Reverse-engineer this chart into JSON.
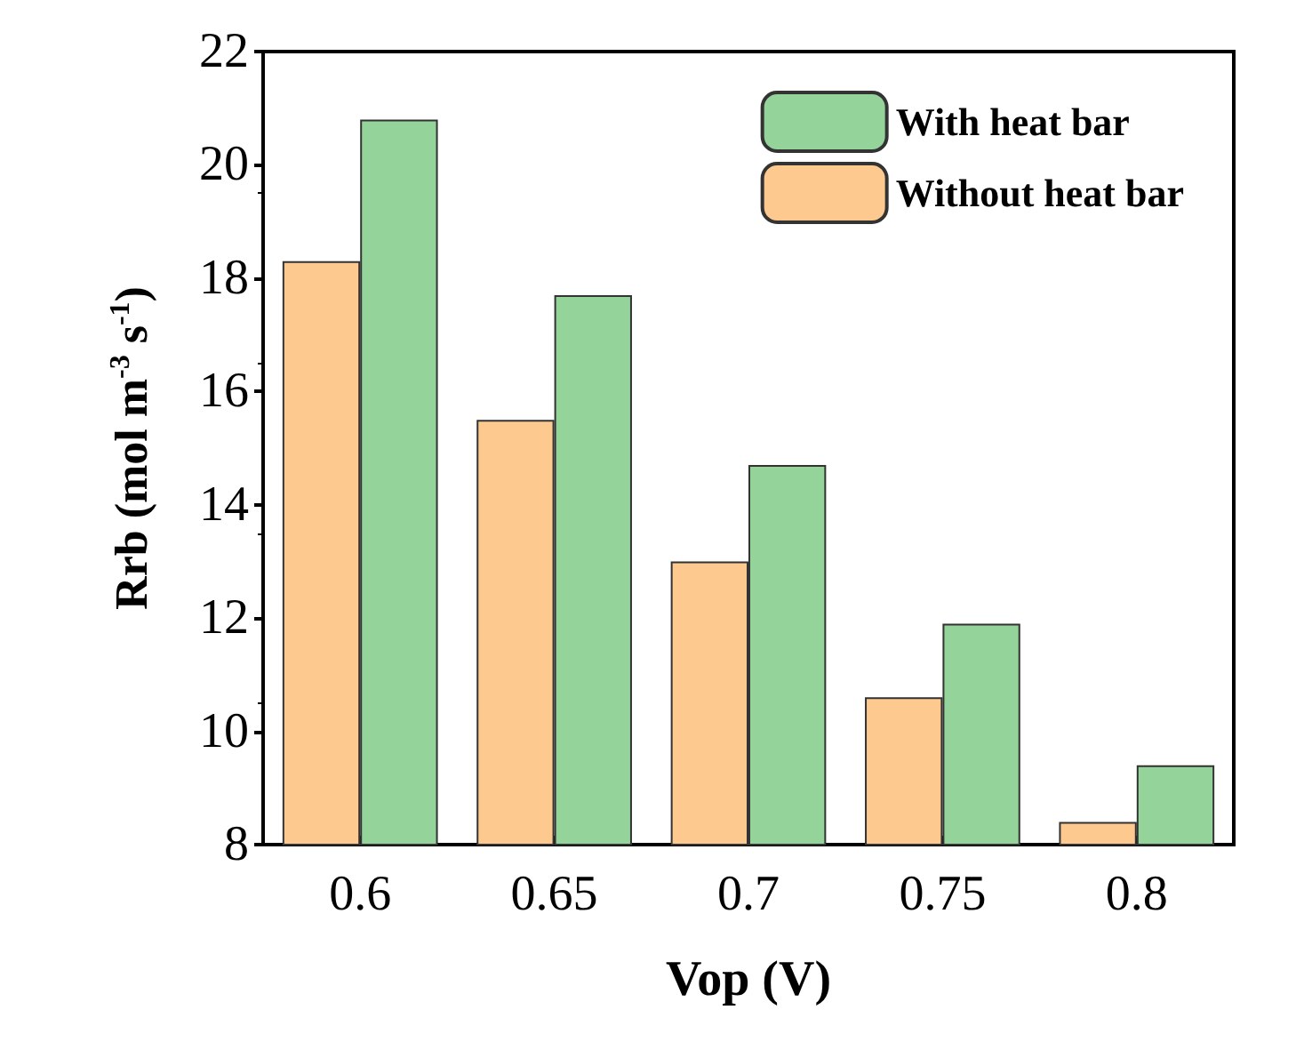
{
  "chart_data": {
    "type": "bar",
    "xlabel": "Vop (V)",
    "ylabel": "Rrb (mol m$^{-3}$ s$^{-1}$)",
    "categories": [
      "0.6",
      "0.65",
      "0.7",
      "0.75",
      "0.8"
    ],
    "series": [
      {
        "name": "Without heat bar",
        "color": "#fdc98e",
        "values": [
          18.3,
          15.5,
          13.0,
          10.6,
          8.4
        ]
      },
      {
        "name": "With heat bar",
        "color": "#94d39a",
        "values": [
          20.8,
          17.7,
          14.7,
          11.9,
          9.4
        ]
      }
    ],
    "ylim": [
      8,
      22
    ],
    "yticks": [
      8,
      10,
      12,
      14,
      16,
      18,
      20,
      22
    ],
    "grid": false,
    "legend": "top right"
  }
}
